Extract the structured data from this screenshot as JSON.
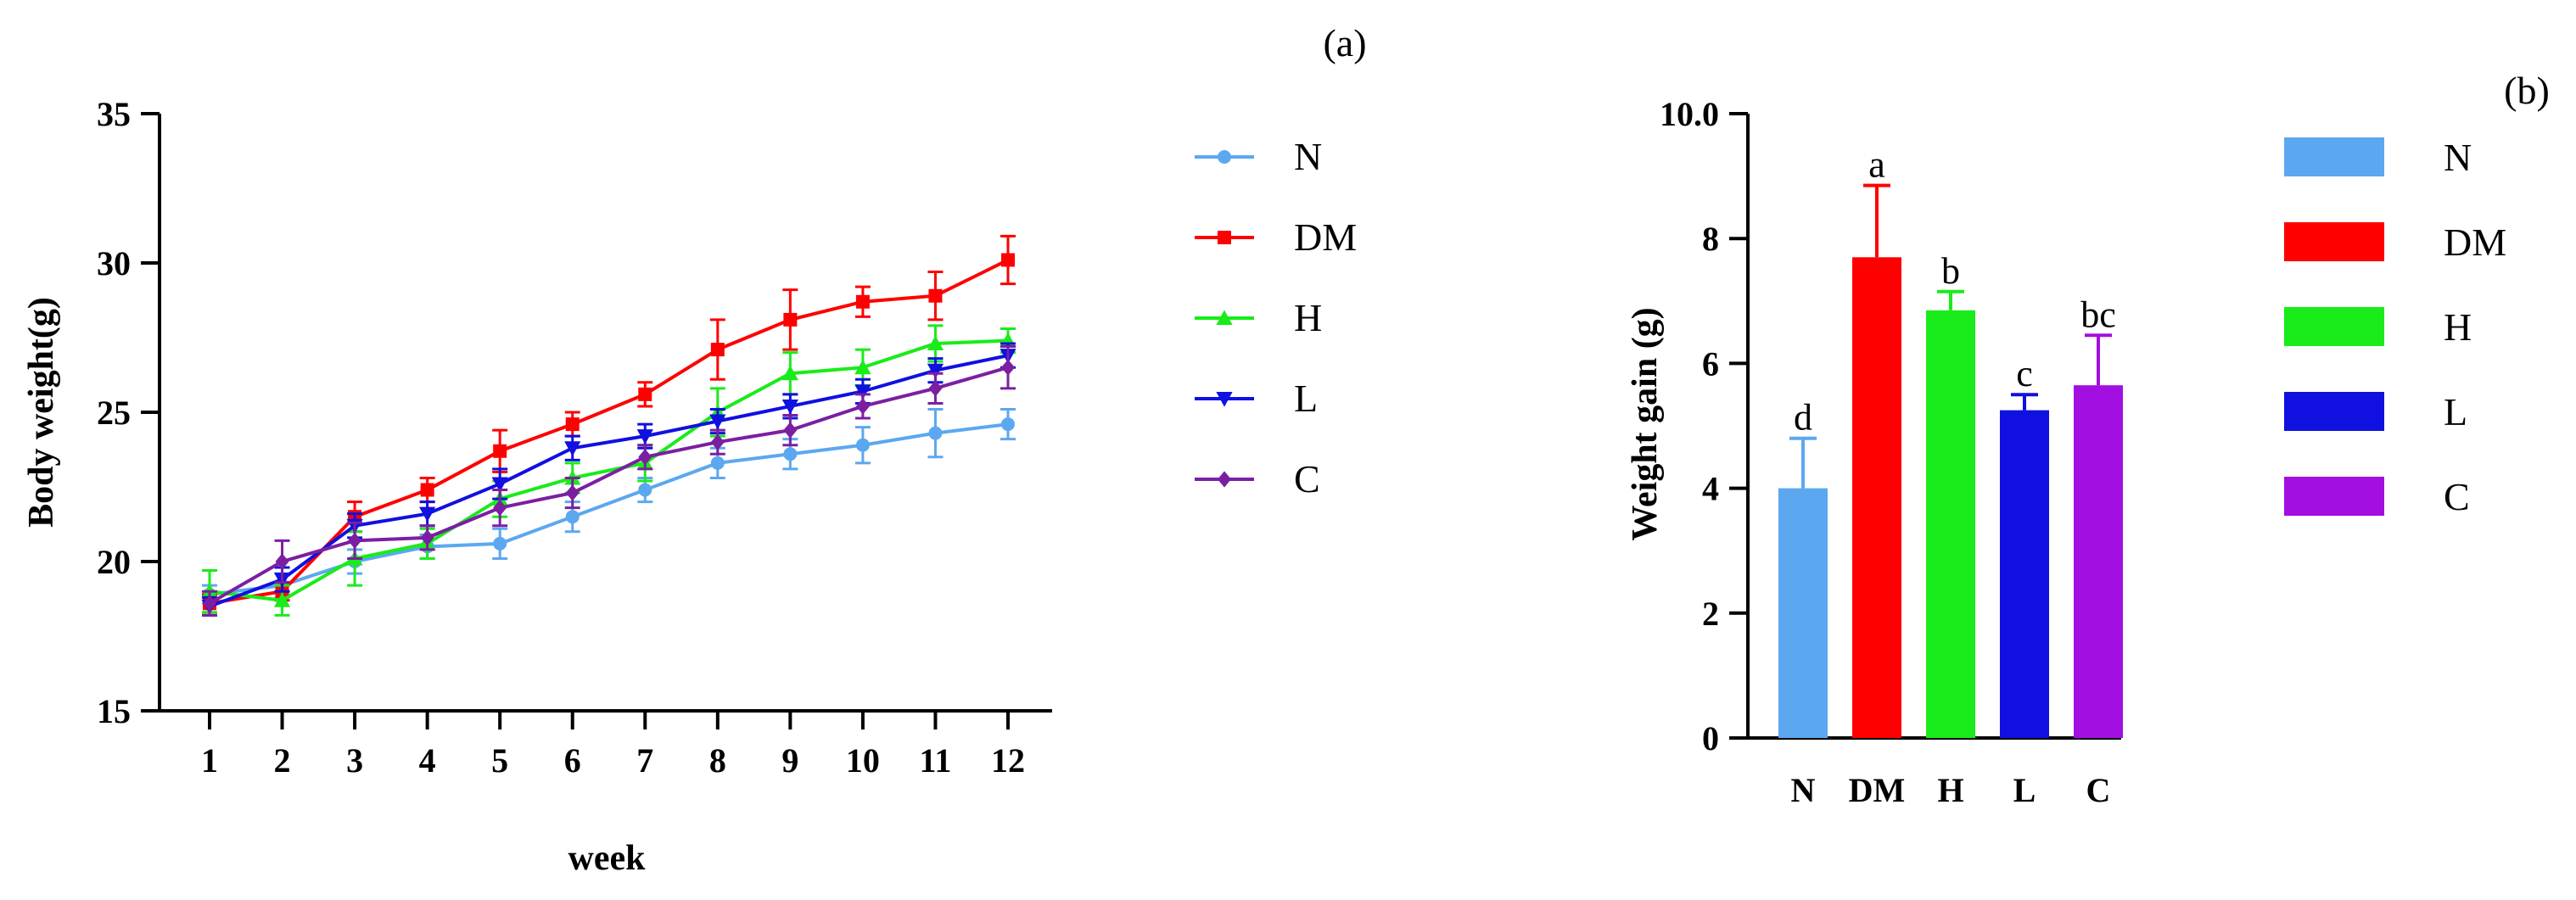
{
  "figure": {
    "panel_a_label": "(a)",
    "panel_b_label": "(b)"
  },
  "chart_data": [
    {
      "type": "line",
      "panel": "(a)",
      "title": "",
      "xlabel": "week",
      "ylabel": "Body weight(g)",
      "x": [
        1,
        2,
        3,
        4,
        5,
        6,
        7,
        8,
        9,
        10,
        11,
        12
      ],
      "xticks": [
        "1",
        "2",
        "3",
        "4",
        "5",
        "6",
        "7",
        "8",
        "9",
        "10",
        "11",
        "12"
      ],
      "ylim": [
        15,
        35
      ],
      "yticks": [
        "15",
        "20",
        "25",
        "30",
        "35"
      ],
      "legend_position": "right",
      "series": [
        {
          "name": "N",
          "color": "#5BA8F0",
          "marker": "circle",
          "values": [
            18.9,
            19.2,
            20.0,
            20.5,
            20.6,
            21.5,
            22.4,
            23.3,
            23.6,
            23.9,
            24.3,
            24.6
          ],
          "errors": [
            0.3,
            0.4,
            0.4,
            0.4,
            0.5,
            0.5,
            0.4,
            0.5,
            0.5,
            0.6,
            0.8,
            0.5
          ]
        },
        {
          "name": "DM",
          "color": "#FF0000",
          "marker": "square",
          "values": [
            18.6,
            19.0,
            21.5,
            22.4,
            23.7,
            24.6,
            25.6,
            27.1,
            28.1,
            28.7,
            28.9,
            30.1
          ],
          "errors": [
            0.3,
            0.3,
            0.5,
            0.4,
            0.7,
            0.4,
            0.4,
            1.0,
            1.0,
            0.5,
            0.8,
            0.8
          ]
        },
        {
          "name": "H",
          "color": "#1AEB1A",
          "marker": "triangle-up",
          "values": [
            19.0,
            18.7,
            20.1,
            20.6,
            22.1,
            22.8,
            23.3,
            25.0,
            26.3,
            26.5,
            27.3,
            27.4
          ],
          "errors": [
            0.7,
            0.5,
            0.9,
            0.5,
            0.6,
            0.5,
            0.6,
            0.8,
            0.7,
            0.6,
            0.6,
            0.4
          ]
        },
        {
          "name": "L",
          "color": "#1010E0",
          "marker": "triangle-down",
          "values": [
            18.5,
            19.4,
            21.2,
            21.6,
            22.6,
            23.8,
            24.2,
            24.7,
            25.2,
            25.7,
            26.4,
            26.9
          ],
          "errors": [
            0.3,
            0.4,
            0.4,
            0.4,
            0.5,
            0.4,
            0.4,
            0.4,
            0.4,
            0.4,
            0.4,
            0.4
          ]
        },
        {
          "name": "C",
          "color": "#7B1FA2",
          "marker": "diamond",
          "values": [
            18.6,
            20.0,
            20.7,
            20.8,
            21.8,
            22.3,
            23.5,
            24.0,
            24.4,
            25.2,
            25.8,
            26.5
          ],
          "errors": [
            0.4,
            0.7,
            0.6,
            0.4,
            0.6,
            0.5,
            0.4,
            0.4,
            0.5,
            0.4,
            0.5,
            0.7
          ]
        }
      ]
    },
    {
      "type": "bar",
      "panel": "(b)",
      "title": "",
      "xlabel": "",
      "ylabel": "Weight gain (g)",
      "categories": [
        "N",
        "DM",
        "H",
        "L",
        "C"
      ],
      "values": [
        4.0,
        7.7,
        6.85,
        5.25,
        5.65
      ],
      "errors": [
        0.8,
        1.15,
        0.3,
        0.25,
        0.8
      ],
      "significance": [
        "d",
        "a",
        "b",
        "c",
        "bc"
      ],
      "colors": [
        "#5BA8F0",
        "#FF0000",
        "#1AEB1A",
        "#1010E0",
        "#A30FE0"
      ],
      "ylim": [
        0,
        10
      ],
      "yticks": [
        "0",
        "2",
        "4",
        "6",
        "8",
        "10.0"
      ],
      "legend_position": "right"
    }
  ]
}
